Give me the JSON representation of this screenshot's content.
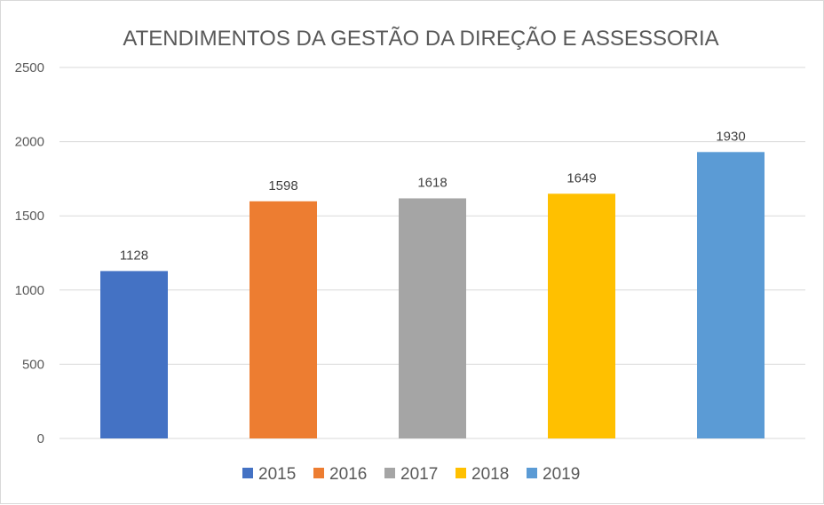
{
  "chart_data": {
    "type": "bar",
    "title": "ATENDIMENTOS DA GESTÃO DA DIREÇÃO E ASSESSORIA",
    "categories": [
      "2015",
      "2016",
      "2017",
      "2018",
      "2019"
    ],
    "values": [
      1128,
      1598,
      1618,
      1649,
      1930
    ],
    "colors": [
      "#4472C4",
      "#ED7D31",
      "#A5A5A5",
      "#FFC000",
      "#5B9BD5"
    ],
    "ylim": [
      0,
      2500
    ],
    "yticks": [
      0,
      500,
      1000,
      1500,
      2000,
      2500
    ],
    "grid": true,
    "legend_position": "bottom",
    "data_labels": true
  }
}
